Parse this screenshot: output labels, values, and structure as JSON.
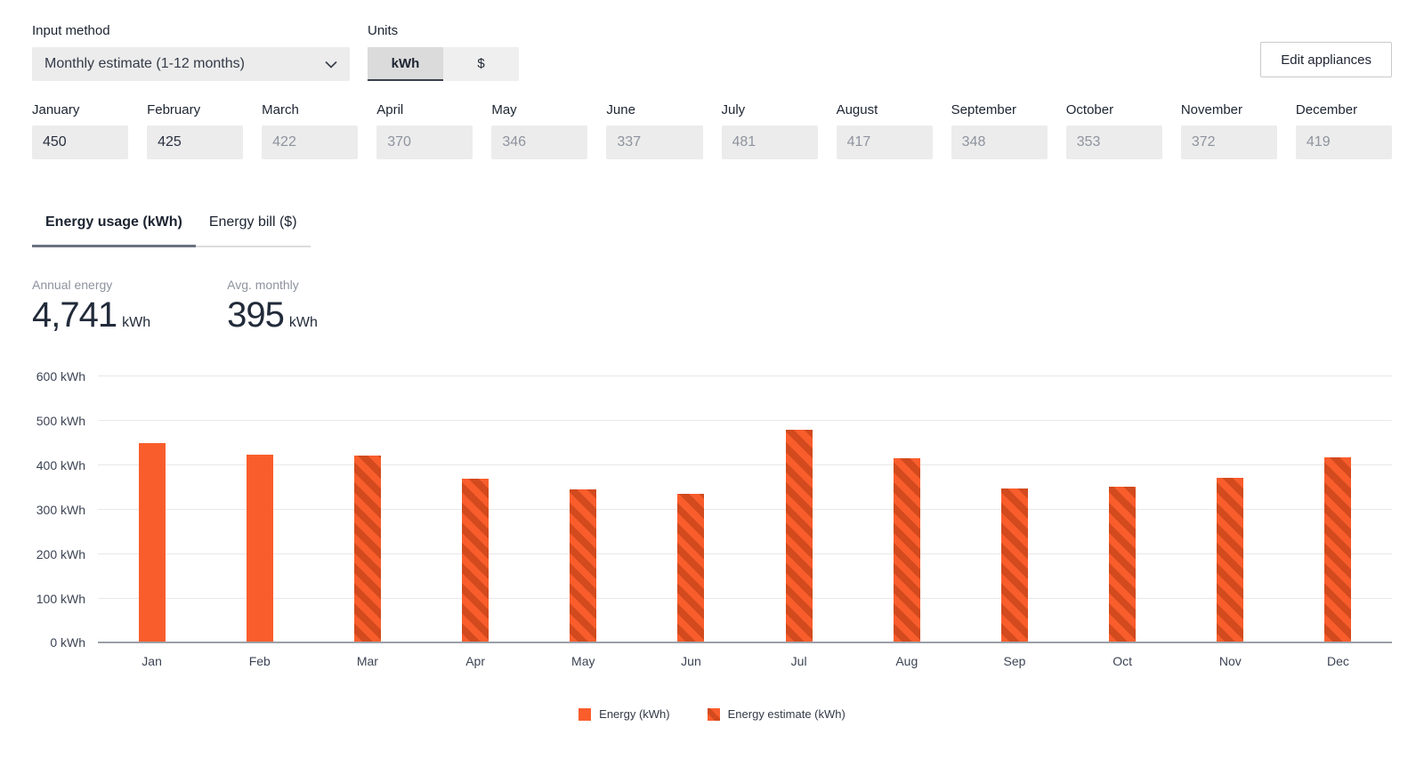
{
  "controls": {
    "input_method": {
      "label": "Input method",
      "value": "Monthly estimate (1-12 months)"
    },
    "units": {
      "label": "Units",
      "options": [
        "kWh",
        "$"
      ],
      "selected": "kWh"
    },
    "edit_appliances_label": "Edit appliances"
  },
  "months": [
    {
      "label": "January",
      "value": "450",
      "estimated": false
    },
    {
      "label": "February",
      "value": "425",
      "estimated": false
    },
    {
      "label": "March",
      "value": "422",
      "estimated": true
    },
    {
      "label": "April",
      "value": "370",
      "estimated": true
    },
    {
      "label": "May",
      "value": "346",
      "estimated": true
    },
    {
      "label": "June",
      "value": "337",
      "estimated": true
    },
    {
      "label": "July",
      "value": "481",
      "estimated": true
    },
    {
      "label": "August",
      "value": "417",
      "estimated": true
    },
    {
      "label": "September",
      "value": "348",
      "estimated": true
    },
    {
      "label": "October",
      "value": "353",
      "estimated": true
    },
    {
      "label": "November",
      "value": "372",
      "estimated": true
    },
    {
      "label": "December",
      "value": "419",
      "estimated": true
    }
  ],
  "tabs": [
    {
      "label": "Energy usage (kWh)",
      "active": true
    },
    {
      "label": "Energy bill ($)",
      "active": false
    }
  ],
  "stats": [
    {
      "label": "Annual energy",
      "value": "4,741",
      "unit": "kWh"
    },
    {
      "label": "Avg. monthly",
      "value": "395",
      "unit": "kWh"
    }
  ],
  "chart_data": {
    "type": "bar",
    "title": "",
    "categories": [
      "Jan",
      "Feb",
      "Mar",
      "Apr",
      "May",
      "Jun",
      "Jul",
      "Aug",
      "Sep",
      "Oct",
      "Nov",
      "Dec"
    ],
    "series": [
      {
        "name": "Energy (kWh)",
        "style": "solid",
        "values": [
          450,
          425,
          null,
          null,
          null,
          null,
          null,
          null,
          null,
          null,
          null,
          null
        ]
      },
      {
        "name": "Energy estimate (kWh)",
        "style": "striped",
        "values": [
          null,
          null,
          422,
          370,
          346,
          337,
          481,
          417,
          348,
          353,
          372,
          419
        ]
      }
    ],
    "ylim": [
      0,
      600
    ],
    "yticks": [
      0,
      100,
      200,
      300,
      400,
      500,
      600
    ],
    "ytick_format": "{v} kWh",
    "grid": true,
    "legend_position": "bottom"
  },
  "colors": {
    "energy": "#F95D2C",
    "energy_estimate_stripe": "#D24A1E",
    "gridline": "#E8E8E8",
    "axis_baseline": "#9AA0A8",
    "input_background": "#ECECEC",
    "text_dark": "#222B3A",
    "text_muted": "#8E939E"
  }
}
